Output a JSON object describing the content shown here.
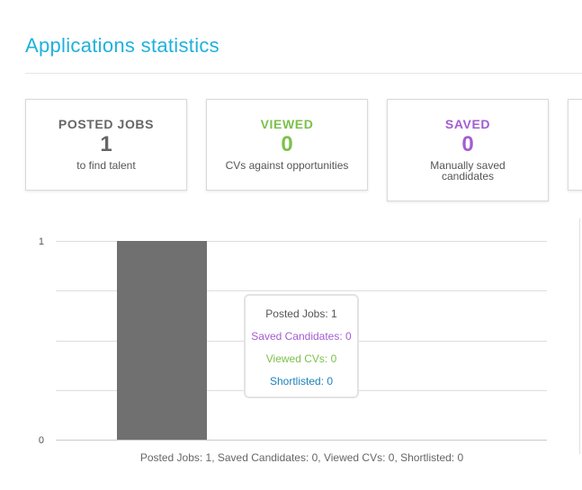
{
  "page": {
    "title": "Applications statistics"
  },
  "cards": [
    {
      "label": "POSTED JOBS",
      "value": "1",
      "description": "to find talent",
      "color": "#666666"
    },
    {
      "label": "VIEWED",
      "value": "0",
      "description": "CVs against opportunities",
      "color": "#7cc04b"
    },
    {
      "label": "SAVED",
      "value": "0",
      "description": "Manually saved candidates",
      "color": "#a35cd2"
    }
  ],
  "chart_data": {
    "type": "bar",
    "categories": [
      ""
    ],
    "series": [
      {
        "name": "Posted Jobs",
        "values": [
          1
        ],
        "color": "#707070"
      },
      {
        "name": "Saved Candidates",
        "values": [
          0
        ],
        "color": "#a35cd2"
      },
      {
        "name": "Viewed CVs",
        "values": [
          0
        ],
        "color": "#7cc04b"
      },
      {
        "name": "Shortlisted",
        "values": [
          0
        ],
        "color": "#1b83b9"
      }
    ],
    "ylim": [
      0,
      1
    ],
    "ytick_labels": [
      "0",
      "1"
    ],
    "grid": true,
    "tooltip": {
      "lines": [
        "Posted Jobs: 1",
        "Saved Candidates: 0",
        "Viewed CVs: 0",
        "Shortlisted: 0"
      ]
    },
    "caption": "Posted Jobs: 1, Saved Candidates: 0, Viewed CVs: 0, Shortlisted: 0"
  }
}
